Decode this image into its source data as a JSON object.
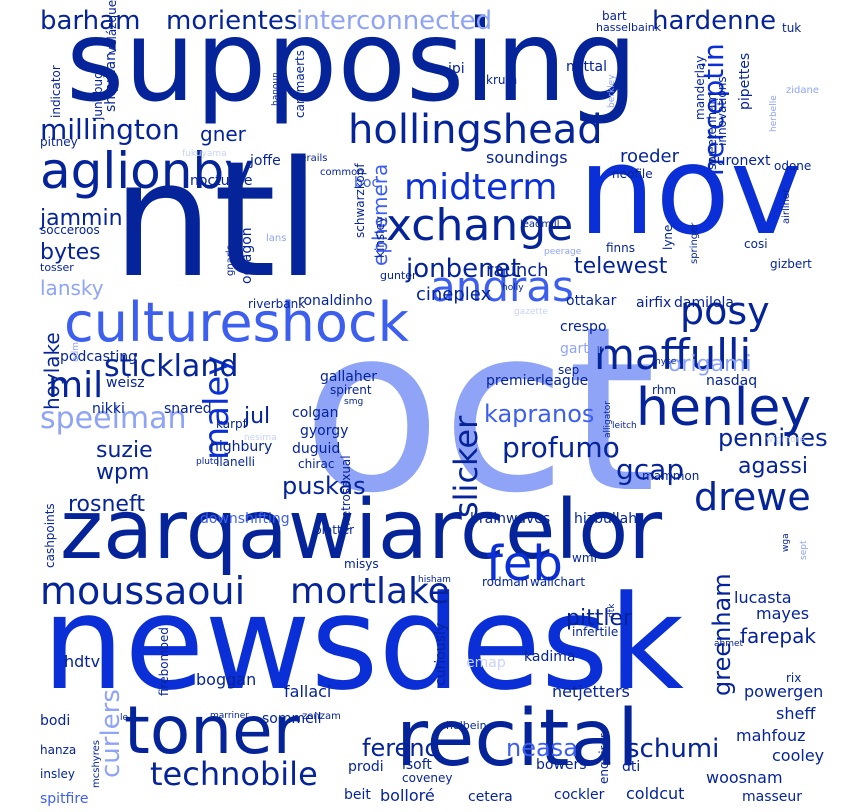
{
  "words": {
    "oct": "oct",
    "newsdesk": "newsdesk",
    "supposing": "supposing",
    "ntl": "ntl",
    "nov": "nov",
    "zarqawiarcelor": "zarqawiarcelor",
    "cultureshock": "cultureshock",
    "toner": "toner",
    "recital": "recital",
    "hollingshead": "hollingshead",
    "xchange": "xchange",
    "midterm": "midterm",
    "aglionby": "aglionby",
    "andras": "andras",
    "posy": "posy",
    "maffulli": "maffulli",
    "henley": "henley",
    "moussaoui": "moussaoui",
    "mortlake": "mortlake",
    "feb": "feb",
    "drewe": "drewe",
    "technobile": "technobile",
    "millington": "millington",
    "barham": "barham",
    "morientes": "morientes",
    "interconnected": "interconnected",
    "hardenne": "hardenne",
    "herceptin": "herceptin",
    "mil": "mil",
    "maley": "maley",
    "stickland": "stickland",
    "speelman": "speelman",
    "jonbenet": "jonbenet",
    "telewest": "telewest",
    "origami": "origami",
    "kapranos": "kapranos",
    "profumo": "profumo",
    "pennines": "pennines",
    "agassi": "agassi",
    "gcap": "gcap",
    "puskas": "puskas",
    "rosneft": "rosneft",
    "slicker": "slicker",
    "greenham": "greenham",
    "pittler": "pittler",
    "ferenc": "ferenc",
    "neasa": "neasa",
    "schumi": "schumi",
    "curlers": "curlers",
    "jammin": "jammin",
    "bytes": "bytes",
    "lansky": "lansky",
    "gner": "gner",
    "ephemera": "ephemera",
    "raunch": "raunch",
    "cineplex": "cineplex",
    "roeder": "roeder",
    "soundings": "soundings",
    "jul": "jul",
    "suzie": "suzie",
    "wpm": "wpm",
    "hoylake": "hoylake",
    "podcasting": "podcasting",
    "nikki": "nikki",
    "mayes": "mayes",
    "lucasta": "lucasta",
    "farepak": "farepak",
    "netjetters": "netjetters",
    "fallaci": "fallaci",
    "boggan": "boggan",
    "hdtv": "hdtv",
    "prodi": "prodi",
    "sommeil": "sommeil",
    "bowers": "bowers",
    "cockler": "cockler",
    "coldcut": "coldcut",
    "woosnam": "woosnam",
    "mahfouz": "mahfouz",
    "cooley": "cooley",
    "sheff": "sheff",
    "powergen": "powergen",
    "masseur": "masseur",
    "bolloré": "bolloré",
    "cetera": "cetera",
    "beit": "beit",
    "spitfire": "spitfire",
    "bodi": "bodi",
    "hanza": "hanza",
    "insley": "insley",
    "isoft": "isoft",
    "coveney": "coveney",
    "holbein": "holbein",
    "enquirer": "enquirer",
    "dti": "dti",
    "kadima": "kadima",
    "emap": "emap",
    "curiously": "curiously",
    "firebombed": "firebombed",
    "mittal": "mittal",
    "ipi": "ipi",
    "krum": "krum",
    "junebug": "junebug",
    "shipman": "shipman",
    "velázquez": "velázquez",
    "cammaerts": "cammaerts",
    "indicator": "indicator",
    "pitney": "pitney",
    "hanoun": "hanoun",
    "bart": "bart",
    "hasselbaink": "hasselbaink",
    "tuk": "tuk",
    "manderlay": "manderlay",
    "pipettes": "pipettes",
    "zidane": "zidane",
    "sweetenham": "sweetenham",
    "innovations": "innovations",
    "euronext": "euronext",
    "odone": "odone",
    "neofile": "neofile",
    "joffe": "joffe",
    "nocturne": "nocturne",
    "socceroos": "socceroos",
    "tosser": "tosser",
    "boc": "boc",
    "schwarzkopf": "schwarzkopf",
    "kinsley": "kinsley",
    "octagon": "octagon",
    "riverbank": "riverbank",
    "ronaldinho": "ronaldinho",
    "gunter": "gunter",
    "ottakar": "ottakar",
    "airfix": "airfix",
    "damilola": "damilola",
    "crespo": "crespo",
    "garton": "garton",
    "gallaher": "gallaher",
    "spirent": "spirent",
    "premierleague": "premierleague",
    "sep": "sep",
    "rhm": "rhm",
    "nasdaq": "nasdaq",
    "weisz": "weisz",
    "snared": "snared",
    "karpf": "karpf",
    "colgan": "colgan",
    "gyorgy": "gyorgy",
    "duguid": "duguid",
    "highbury": "highbury",
    "llanelli": "llanelli",
    "chirac": "chirac",
    "cashpoints": "cashpoints",
    "downshifting": "downshifting",
    "platter": "platter",
    "brainwaves": "brainwaves",
    "hizbullah": "hizbullah",
    "mammon": "mammon",
    "wmf": "wmf",
    "misys": "misys",
    "rodman": "rodman",
    "wallchart": "wallchart",
    "infertile": "infertile",
    "lyne": "lyne",
    "finns": "finns",
    "gizbert": "gizbert",
    "cosi": "cosi",
    "metrosexual": "metrosexual",
    "hisham": "hisham",
    "pluto": "pluto",
    "leitch": "leitch",
    "wigmore": "wigmore",
    "springer": "springer",
    "airliner": "airliner",
    "lans": "lans",
    "gnarls": "gnarls",
    "fukuyama": "fukuyama",
    "derails": "derails",
    "common": "common",
    "leadmill": "leadmill",
    "peerage": "peerage",
    "rix": "rix",
    "ahmet": "ahmet",
    "marriner": "marriner",
    "mcshyres": "mcshyres",
    "zonzam": "zonzam",
    "alligator": "alligator",
    "gazette": "gazette",
    "holly": "holly",
    "smg": "smg",
    "myse": "myse",
    "nesima": "nesima",
    "sept": "sept",
    "herbelle": "herbelle",
    "berkley": "berkley",
    "wga": "wga",
    "adm": "adm",
    "dtk": "dtk",
    "le": "le"
  }
}
